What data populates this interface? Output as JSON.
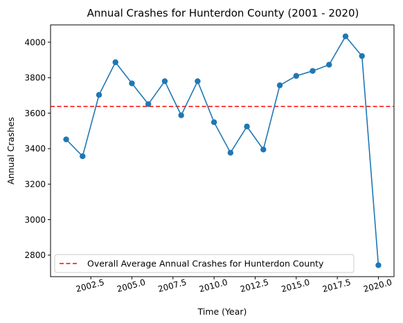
{
  "chart_data": {
    "type": "line",
    "title": "Annual Crashes for Hunterdon County (2001 - 2020)",
    "xlabel": "Time (Year)",
    "ylabel": "Annual Crashes",
    "x": [
      2001,
      2002,
      2003,
      2004,
      2005,
      2006,
      2007,
      2008,
      2009,
      2010,
      2011,
      2012,
      2013,
      2014,
      2015,
      2016,
      2017,
      2018,
      2019,
      2020
    ],
    "series": [
      {
        "values": [
          3452,
          3357,
          3703,
          3887,
          3768,
          3651,
          3780,
          3588,
          3780,
          3549,
          3377,
          3525,
          3395,
          3757,
          3810,
          3838,
          3873,
          4033,
          3922,
          2743
        ],
        "color": "#1f77b4"
      }
    ],
    "reference_line": {
      "label": "Overall Average Annual Crashes for Hunterdon County",
      "value": 3638,
      "color": "#ff0000",
      "style": "dashed"
    },
    "xticks": [
      "2002.5",
      "2005.0",
      "2007.5",
      "2010.0",
      "2012.5",
      "2015.0",
      "2017.5",
      "2020.0"
    ],
    "xtick_values": [
      2002.5,
      2005.0,
      2007.5,
      2010.0,
      2012.5,
      2015.0,
      2017.5,
      2020.0
    ],
    "yticks": [
      "2800",
      "3000",
      "3200",
      "3400",
      "3600",
      "3800",
      "4000"
    ],
    "ytick_values": [
      2800,
      3000,
      3200,
      3400,
      3600,
      3800,
      4000
    ],
    "xlim": [
      2000.05,
      2020.95
    ],
    "ylim": [
      2678.5,
      4097.5
    ],
    "grid": false,
    "legend_position": "lower-left"
  }
}
